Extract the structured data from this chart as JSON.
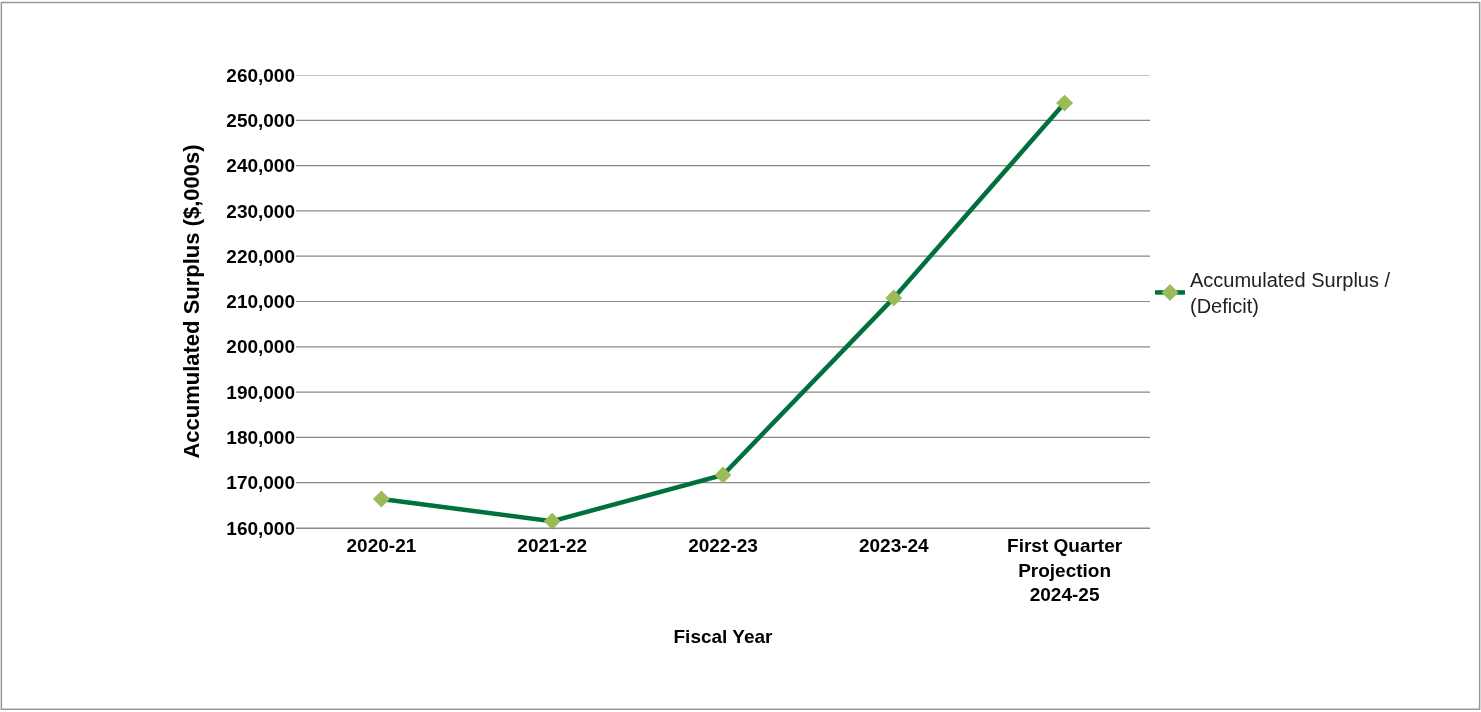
{
  "chart_data": {
    "type": "line",
    "xlabel": "Fiscal Year",
    "ylabel": "Accumulated Surplus ($,000s)",
    "categories": [
      "2020-21",
      "2021-22",
      "2022-23",
      "2023-24",
      "First Quarter Projection 2024-25"
    ],
    "series": [
      {
        "name": "Accumulated Surplus / (Deficit)",
        "color": "#00703c",
        "colors": [
          "#9bbb59",
          "#9bbb59",
          "#9bbb59",
          "#9bbb59",
          "#9bbb59"
        ],
        "values": [
          166400,
          161500,
          171700,
          210800,
          253800
        ]
      }
    ],
    "ylim": [
      160000,
      260000
    ],
    "yticks": [
      {
        "value": 160000,
        "label": "160,000"
      },
      {
        "value": 170000,
        "label": "170,000"
      },
      {
        "value": 180000,
        "label": "180,000"
      },
      {
        "value": 190000,
        "label": "190,000"
      },
      {
        "value": 200000,
        "label": "200,000"
      },
      {
        "value": 210000,
        "label": "210,000"
      },
      {
        "value": 220000,
        "label": "220,000"
      },
      {
        "value": 230000,
        "label": "230,000"
      },
      {
        "value": 240000,
        "label": "240,000"
      },
      {
        "value": 250000,
        "label": "250,000"
      },
      {
        "value": 260000,
        "label": "260,000"
      }
    ],
    "grid": "y",
    "legend": "right",
    "marker": "diamond",
    "line_style": "solid"
  }
}
